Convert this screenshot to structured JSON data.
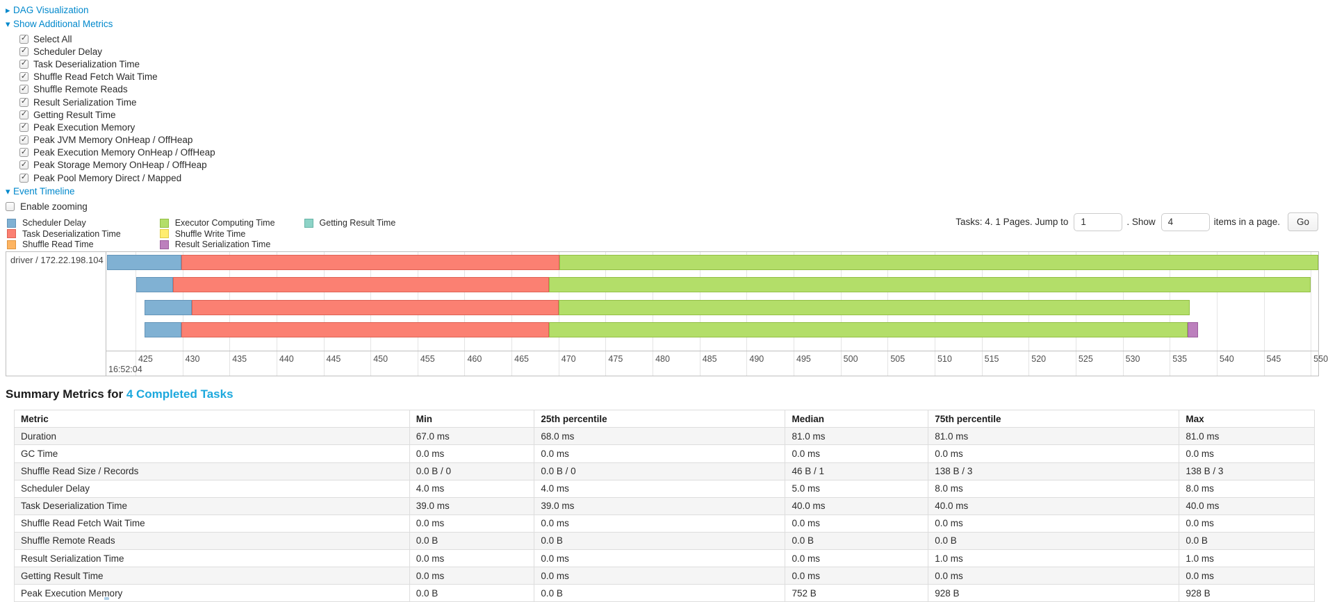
{
  "nav": {
    "dag": {
      "label": "DAG Visualization",
      "expanded": false
    },
    "metrics_toggle": {
      "label": "Show Additional Metrics",
      "expanded": true
    },
    "metric_checkboxes": [
      {
        "label": "Select All",
        "checked": true
      },
      {
        "label": "Scheduler Delay",
        "checked": true
      },
      {
        "label": "Task Deserialization Time",
        "checked": true
      },
      {
        "label": "Shuffle Read Fetch Wait Time",
        "checked": true
      },
      {
        "label": "Shuffle Remote Reads",
        "checked": true
      },
      {
        "label": "Result Serialization Time",
        "checked": true
      },
      {
        "label": "Getting Result Time",
        "checked": true
      },
      {
        "label": "Peak Execution Memory",
        "checked": true
      },
      {
        "label": "Peak JVM Memory OnHeap / OffHeap",
        "checked": true
      },
      {
        "label": "Peak Execution Memory OnHeap / OffHeap",
        "checked": true
      },
      {
        "label": "Peak Storage Memory OnHeap / OffHeap",
        "checked": true
      },
      {
        "label": "Peak Pool Memory Direct / Mapped",
        "checked": true
      }
    ],
    "timeline_toggle": {
      "label": "Event Timeline",
      "expanded": true
    },
    "enable_zooming": {
      "label": "Enable zooming",
      "checked": false
    }
  },
  "pagination": {
    "prefix": "Tasks: 4. 1 Pages. Jump to",
    "jump_value": "1",
    "mid": ". Show",
    "show_value": "4",
    "suffix": "items in a page.",
    "go_label": "Go"
  },
  "chart_data": {
    "type": "timeline",
    "group_label": "driver / 172.22.198.104",
    "axis": {
      "start": 421.9,
      "end": 550.8,
      "ticks": [
        425,
        430,
        435,
        440,
        445,
        450,
        455,
        460,
        465,
        470,
        475,
        480,
        485,
        490,
        495,
        500,
        505,
        510,
        515,
        520,
        525,
        530,
        535,
        540,
        545,
        550
      ],
      "major_label": "16:52:04"
    },
    "colors": {
      "scheduler-delay": {
        "label": "Scheduler Delay",
        "fill": "#80B1D3",
        "border": "#6494B8"
      },
      "task-deserialization": {
        "label": "Task Deserialization Time",
        "fill": "#FB8072",
        "border": "#DE6254"
      },
      "shuffle-read": {
        "label": "Shuffle Read Time",
        "fill": "#FDB462",
        "border": "#E09540"
      },
      "executor-computing": {
        "label": "Executor Computing Time",
        "fill": "#B3DE69",
        "border": "#93BF45"
      },
      "shuffle-write": {
        "label": "Shuffle Write Time",
        "fill": "#FFED6F",
        "border": "#E0CC48"
      },
      "result-serialization": {
        "label": "Result Serialization Time",
        "fill": "#BC80BD",
        "border": "#9C5F9D"
      },
      "getting-result": {
        "label": "Getting Result Time",
        "fill": "#8DD3C7",
        "border": "#66B3A5"
      }
    },
    "legend_columns": [
      [
        "scheduler-delay",
        "task-deserialization",
        "shuffle-read"
      ],
      [
        "executor-computing",
        "shuffle-write",
        "result-serialization"
      ],
      [
        "getting-result"
      ]
    ],
    "tasks": [
      {
        "segments": [
          {
            "type": "scheduler-delay",
            "start": 422.0,
            "end": 429.9
          },
          {
            "type": "task-deserialization",
            "start": 429.9,
            "end": 470.1
          },
          {
            "type": "executor-computing",
            "start": 470.1,
            "end": 551.1
          }
        ]
      },
      {
        "segments": [
          {
            "type": "scheduler-delay",
            "start": 425.1,
            "end": 429.0
          },
          {
            "type": "task-deserialization",
            "start": 429.0,
            "end": 469.0
          },
          {
            "type": "executor-computing",
            "start": 469.0,
            "end": 550.0
          }
        ]
      },
      {
        "segments": [
          {
            "type": "scheduler-delay",
            "start": 426.0,
            "end": 431.0
          },
          {
            "type": "task-deserialization",
            "start": 431.0,
            "end": 470.0
          },
          {
            "type": "executor-computing",
            "start": 470.0,
            "end": 537.1
          }
        ]
      },
      {
        "segments": [
          {
            "type": "scheduler-delay",
            "start": 426.0,
            "end": 429.9
          },
          {
            "type": "task-deserialization",
            "start": 429.9,
            "end": 469.0
          },
          {
            "type": "executor-computing",
            "start": 469.0,
            "end": 536.9
          },
          {
            "type": "result-serialization",
            "start": 536.9,
            "end": 538.0
          }
        ]
      }
    ]
  },
  "summary": {
    "title_prefix": "Summary Metrics for ",
    "title_link": "4 Completed Tasks",
    "table": {
      "headers": [
        "Metric",
        "Min",
        "25th percentile",
        "Median",
        "75th percentile",
        "Max"
      ],
      "col_widths_pct": [
        30.4,
        9.6,
        19.3,
        11.0,
        19.3,
        10.4
      ],
      "rows": [
        [
          "Duration",
          "67.0 ms",
          "68.0 ms",
          "81.0 ms",
          "81.0 ms",
          "81.0 ms"
        ],
        [
          "GC Time",
          "0.0 ms",
          "0.0 ms",
          "0.0 ms",
          "0.0 ms",
          "0.0 ms"
        ],
        [
          "Shuffle Read Size / Records",
          "0.0 B / 0",
          "0.0 B / 0",
          "46 B / 1",
          "138 B / 3",
          "138 B / 3"
        ],
        [
          "Scheduler Delay",
          "4.0 ms",
          "4.0 ms",
          "5.0 ms",
          "8.0 ms",
          "8.0 ms"
        ],
        [
          "Task Deserialization Time",
          "39.0 ms",
          "39.0 ms",
          "40.0 ms",
          "40.0 ms",
          "40.0 ms"
        ],
        [
          "Shuffle Read Fetch Wait Time",
          "0.0 ms",
          "0.0 ms",
          "0.0 ms",
          "0.0 ms",
          "0.0 ms"
        ],
        [
          "Shuffle Remote Reads",
          "0.0 B",
          "0.0 B",
          "0.0 B",
          "0.0 B",
          "0.0 B"
        ],
        [
          "Result Serialization Time",
          "0.0 ms",
          "0.0 ms",
          "0.0 ms",
          "1.0 ms",
          "1.0 ms"
        ],
        [
          "Getting Result Time",
          "0.0 ms",
          "0.0 ms",
          "0.0 ms",
          "0.0 ms",
          "0.0 ms"
        ],
        [
          "Peak Execution Memory",
          "0.0 B",
          "0.0 B",
          "752 B",
          "928 B",
          "928 B"
        ]
      ]
    }
  }
}
